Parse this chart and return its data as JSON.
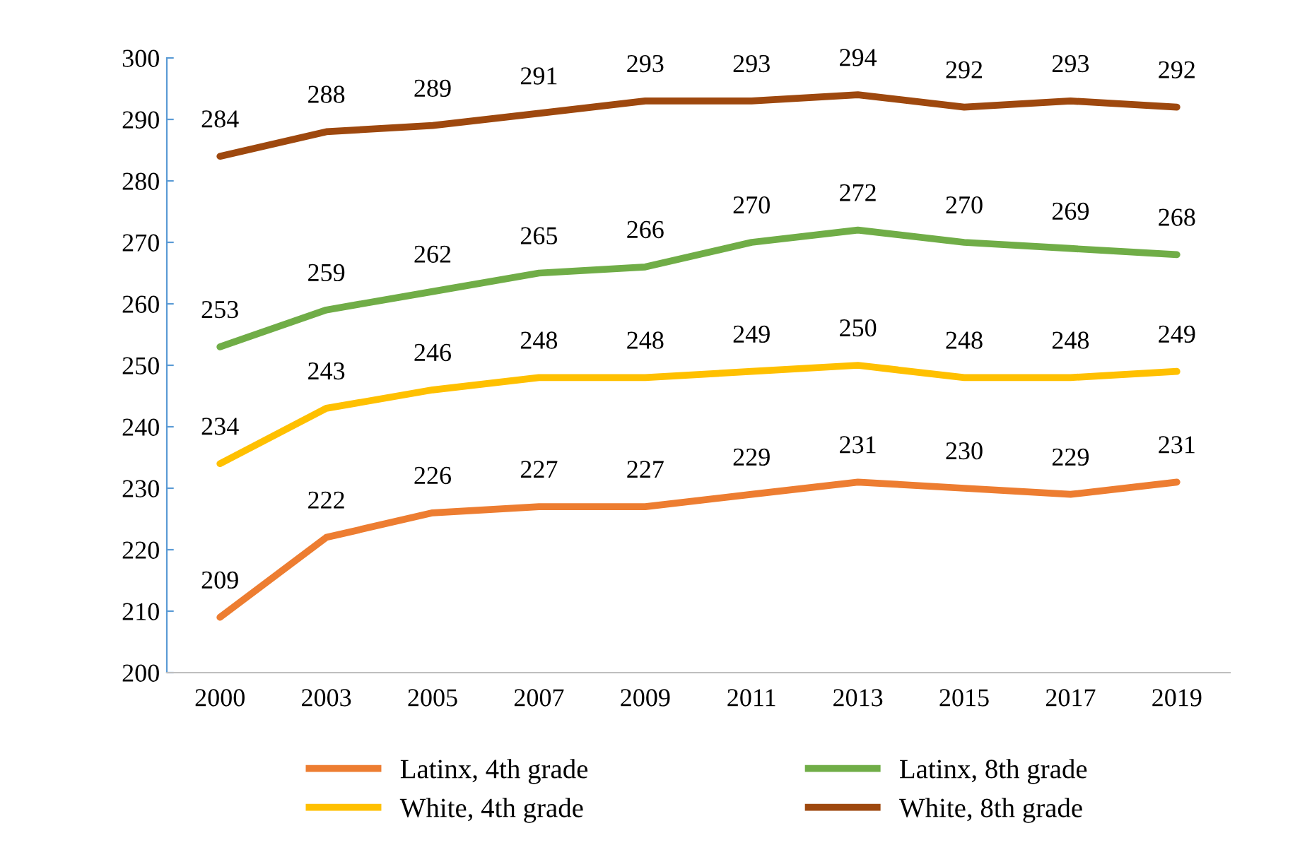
{
  "chart_data": {
    "type": "line",
    "categories": [
      "2000",
      "2003",
      "2005",
      "2007",
      "2009",
      "2011",
      "2013",
      "2015",
      "2017",
      "2019"
    ],
    "series": [
      {
        "name": "Latinx, 4th grade",
        "color": "#ed7d31",
        "values": [
          209,
          222,
          226,
          227,
          227,
          229,
          231,
          230,
          229,
          231
        ]
      },
      {
        "name": "White, 4th grade",
        "color": "#ffc000",
        "values": [
          234,
          243,
          246,
          248,
          248,
          249,
          250,
          248,
          248,
          249
        ]
      },
      {
        "name": "Latinx, 8th grade",
        "color": "#70ad47",
        "values": [
          253,
          259,
          262,
          265,
          266,
          270,
          272,
          270,
          269,
          268
        ]
      },
      {
        "name": "White, 8th grade",
        "color": "#9e480e",
        "values": [
          284,
          288,
          289,
          291,
          293,
          293,
          294,
          292,
          293,
          292
        ]
      }
    ],
    "ylim": [
      200,
      300
    ],
    "yticks": [
      200,
      210,
      220,
      230,
      240,
      250,
      260,
      270,
      280,
      290,
      300
    ],
    "grid": false,
    "legend": "bottom",
    "marker": "none",
    "line_style": "solid",
    "data_labels": true
  }
}
